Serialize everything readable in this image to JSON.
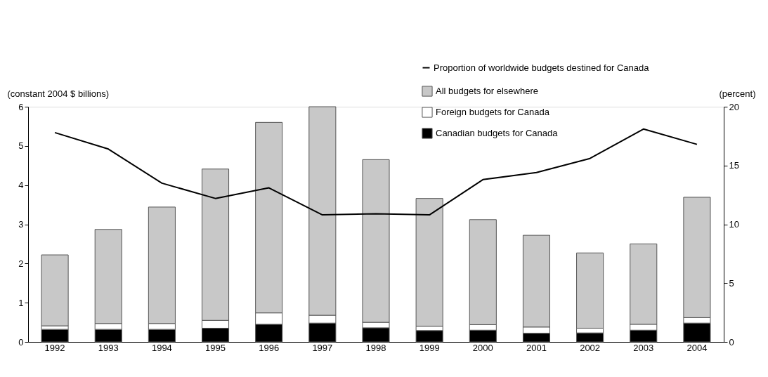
{
  "chart_data": {
    "type": "bar",
    "stacked": true,
    "categories": [
      "1992",
      "1993",
      "1994",
      "1995",
      "1996",
      "1997",
      "1998",
      "1999",
      "2000",
      "2001",
      "2002",
      "2003",
      "2004"
    ],
    "ylabel": "(constant 2004 $ billions)",
    "y2label": "(percent)",
    "ylim": [
      0,
      6
    ],
    "yticks": [
      0,
      1,
      2,
      3,
      4,
      5,
      6
    ],
    "y2lim": [
      0,
      20
    ],
    "y2ticks": [
      0,
      5,
      10,
      15,
      20
    ],
    "series": [
      {
        "name": "Canadian budgets for Canada",
        "color": "#000000",
        "values": [
          0.32,
          0.32,
          0.32,
          0.35,
          0.45,
          0.48,
          0.36,
          0.29,
          0.3,
          0.22,
          0.23,
          0.3,
          0.48
        ]
      },
      {
        "name": "Foreign budgets for Canada",
        "color": "#ffffff",
        "values": [
          0.09,
          0.15,
          0.15,
          0.2,
          0.29,
          0.2,
          0.14,
          0.11,
          0.14,
          0.16,
          0.12,
          0.15,
          0.14
        ]
      },
      {
        "name": "All budgets for elsewhere",
        "color": "#c8c8c8",
        "values": [
          1.81,
          2.4,
          2.97,
          3.86,
          4.86,
          5.32,
          4.15,
          3.26,
          2.68,
          2.34,
          1.92,
          2.05,
          3.07
        ]
      },
      {
        "name": "Proportion of worldwide budgets destined for Canada",
        "type": "line",
        "axis": "y2",
        "color": "#000000",
        "values": [
          17.8,
          16.4,
          13.5,
          12.2,
          13.1,
          10.8,
          10.9,
          10.8,
          13.8,
          14.4,
          15.6,
          18.1,
          16.8
        ]
      }
    ],
    "legend": "top right",
    "grid": false
  }
}
